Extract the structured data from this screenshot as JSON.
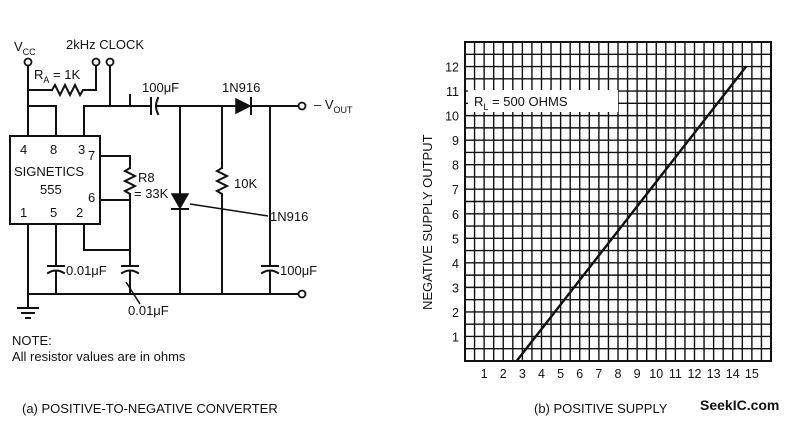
{
  "circuit": {
    "vcc_main": "V",
    "vcc_sub": "CC",
    "clock_label": "2kHz CLOCK",
    "ra_main": "R",
    "ra_sub": "A",
    "ra_value": " = 1K",
    "pins": {
      "p4": "4",
      "p8": "8",
      "p3": "3",
      "p7": "7",
      "p6": "6",
      "p1": "1",
      "p5": "5",
      "p2": "2"
    },
    "ic_name": "SIGNETICS",
    "ic_part": "555",
    "r8_label": "R8",
    "r8_value": "= 33K",
    "c_couple": "100μF",
    "diode_series": "1N916",
    "vout_main": "– V",
    "vout_sub": "OUT",
    "r10k": "10K",
    "diode_shunt": "1N916",
    "c_out": "100μF",
    "c_pin5": "0.01μF",
    "c_timing": "0.01μF",
    "note_title": "NOTE:",
    "note_text": "All resistor values are in ohms"
  },
  "captions": {
    "a": "(a) POSITIVE-TO-NEGATIVE CONVERTER",
    "b": "(b)  POSITIVE SUPPLY"
  },
  "watermark": "SeekIC.com",
  "chart_data": {
    "type": "line",
    "title": "",
    "xlabel": "POSITIVE SUPPLY",
    "ylabel": "NEGATIVE SUPPLY OUTPUT",
    "annotation_main": "R",
    "annotation_sub": "L",
    "annotation_value": " = 500 OHMS",
    "xlim": [
      0,
      16
    ],
    "ylim": [
      0,
      13
    ],
    "x_ticks": [
      1,
      2,
      3,
      4,
      5,
      6,
      7,
      8,
      9,
      10,
      11,
      12,
      13,
      14,
      15
    ],
    "y_ticks": [
      1,
      2,
      3,
      4,
      5,
      6,
      7,
      8,
      9,
      10,
      11,
      12
    ],
    "grid": true,
    "series": [
      {
        "name": "R_L = 500 OHMS",
        "x": [
          2.7,
          14.7
        ],
        "y": [
          0,
          12
        ]
      }
    ]
  }
}
